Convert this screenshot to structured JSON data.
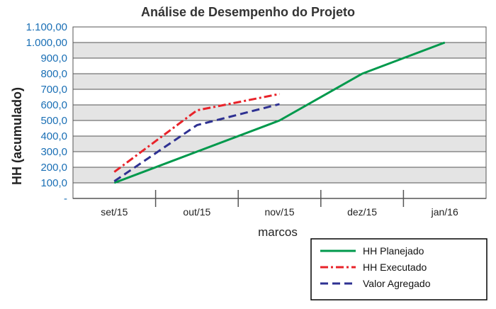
{
  "chart_data": {
    "type": "line",
    "title": "Análise de Desempenho do Projeto",
    "xlabel": "marcos",
    "ylabel": "HH (acumulado)",
    "categories": [
      "set/15",
      "out/15",
      "nov/15",
      "dez/15",
      "jan/16"
    ],
    "y_ticks": [
      "-",
      "100,0",
      "200,0",
      "300,0",
      "400,0",
      "500,0",
      "600,0",
      "700,0",
      "800,0",
      "900,0",
      "1.000,00",
      "1.100,00"
    ],
    "ylim": [
      0,
      1100
    ],
    "grid": true,
    "legend_position": "bottom-right",
    "series": [
      {
        "name": "HH Planejado",
        "color": "#00994c",
        "style": "solid",
        "points": [
          [
            "set/15",
            100
          ],
          [
            "out/15",
            300
          ],
          [
            "nov/15",
            500
          ],
          [
            "dez/15",
            800
          ],
          [
            "jan/16",
            1000
          ]
        ]
      },
      {
        "name": "HH Executado",
        "color": "#e8232a",
        "style": "dashdot",
        "points": [
          [
            "set/15",
            170
          ],
          [
            "out/15",
            565
          ],
          [
            "nov/15",
            670
          ]
        ]
      },
      {
        "name": "Valor Agregado",
        "color": "#2e3192",
        "style": "dash",
        "points": [
          [
            "set/15",
            110
          ],
          [
            "out/15",
            470
          ],
          [
            "nov/15",
            605
          ]
        ]
      }
    ]
  }
}
